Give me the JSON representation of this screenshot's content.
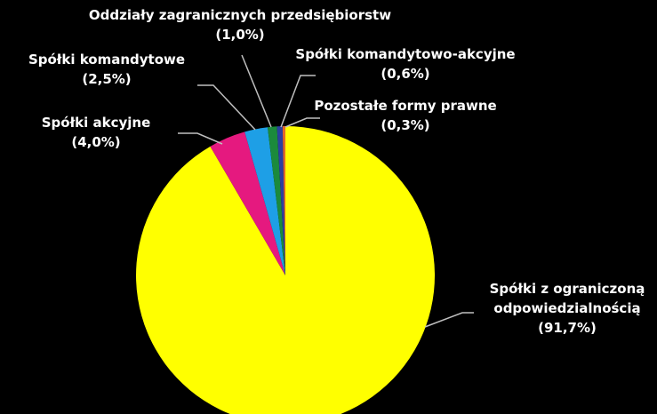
{
  "chart_data": {
    "type": "pie",
    "start_angle_deg": 0,
    "direction": "clockwise",
    "slices": [
      {
        "label_lines": [
          "Spółki z ograniczoną",
          "odpowiedzialnością",
          "(91,7%)"
        ],
        "value": 91.7,
        "color": "#ffff00"
      },
      {
        "label_lines": [
          "Spółki akcyjne",
          "(4,0%)"
        ],
        "value": 4.0,
        "color": "#e5197f"
      },
      {
        "label_lines": [
          "Spółki komandytowe",
          "(2,5%)"
        ],
        "value": 2.5,
        "color": "#1e9fe6"
      },
      {
        "label_lines": [
          "Oddziały zagranicznych przedsiębiorstw",
          "(1,0%)"
        ],
        "value": 1.0,
        "color": "#1b8a3c"
      },
      {
        "label_lines": [
          "Spółki komandytowo-akcyjne",
          "(0,6%)"
        ],
        "value": 0.6,
        "color": "#2b3fa0"
      },
      {
        "label_lines": [
          "Pozostałe formy prawne",
          "(0,3%)"
        ],
        "value": 0.3,
        "color": "#e2682a"
      }
    ],
    "legend": "none"
  }
}
